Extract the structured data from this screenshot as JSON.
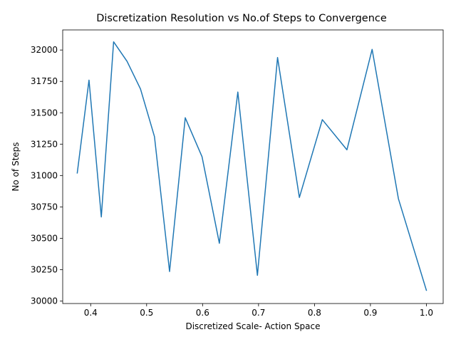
{
  "chart_data": {
    "type": "line",
    "title": "Discretization Resolution vs No.of Steps to Convergence",
    "xlabel": "Discretized Scale- Action Space",
    "ylabel": "No of Steps",
    "xlim": [
      0.35,
      1.03
    ],
    "ylim": [
      29980,
      32160
    ],
    "xticks": [
      0.4,
      0.5,
      0.6,
      0.7,
      0.8,
      0.9,
      1.0
    ],
    "xtick_labels": [
      "0.4",
      "0.5",
      "0.6",
      "0.7",
      "0.8",
      "0.9",
      "1.0"
    ],
    "yticks": [
      30000,
      30250,
      30500,
      30750,
      31000,
      31250,
      31500,
      31750,
      32000
    ],
    "ytick_labels": [
      "30000",
      "30250",
      "30500",
      "30750",
      "31000",
      "31250",
      "31500",
      "31750",
      "32000"
    ],
    "grid": false,
    "line_color": "#1f77b4",
    "series": [
      {
        "x": [
          0.376,
          0.397,
          0.419,
          0.441,
          0.465,
          0.489,
          0.514,
          0.541,
          0.569,
          0.599,
          0.63,
          0.663,
          0.698,
          0.734,
          0.773,
          0.814,
          0.858,
          0.903,
          0.95,
          1.0
        ],
        "y": [
          31020,
          31760,
          30670,
          32065,
          31910,
          31690,
          31310,
          30235,
          31460,
          31150,
          30460,
          31665,
          30205,
          31940,
          30825,
          31445,
          31205,
          32005,
          30815,
          30085
        ]
      }
    ]
  }
}
